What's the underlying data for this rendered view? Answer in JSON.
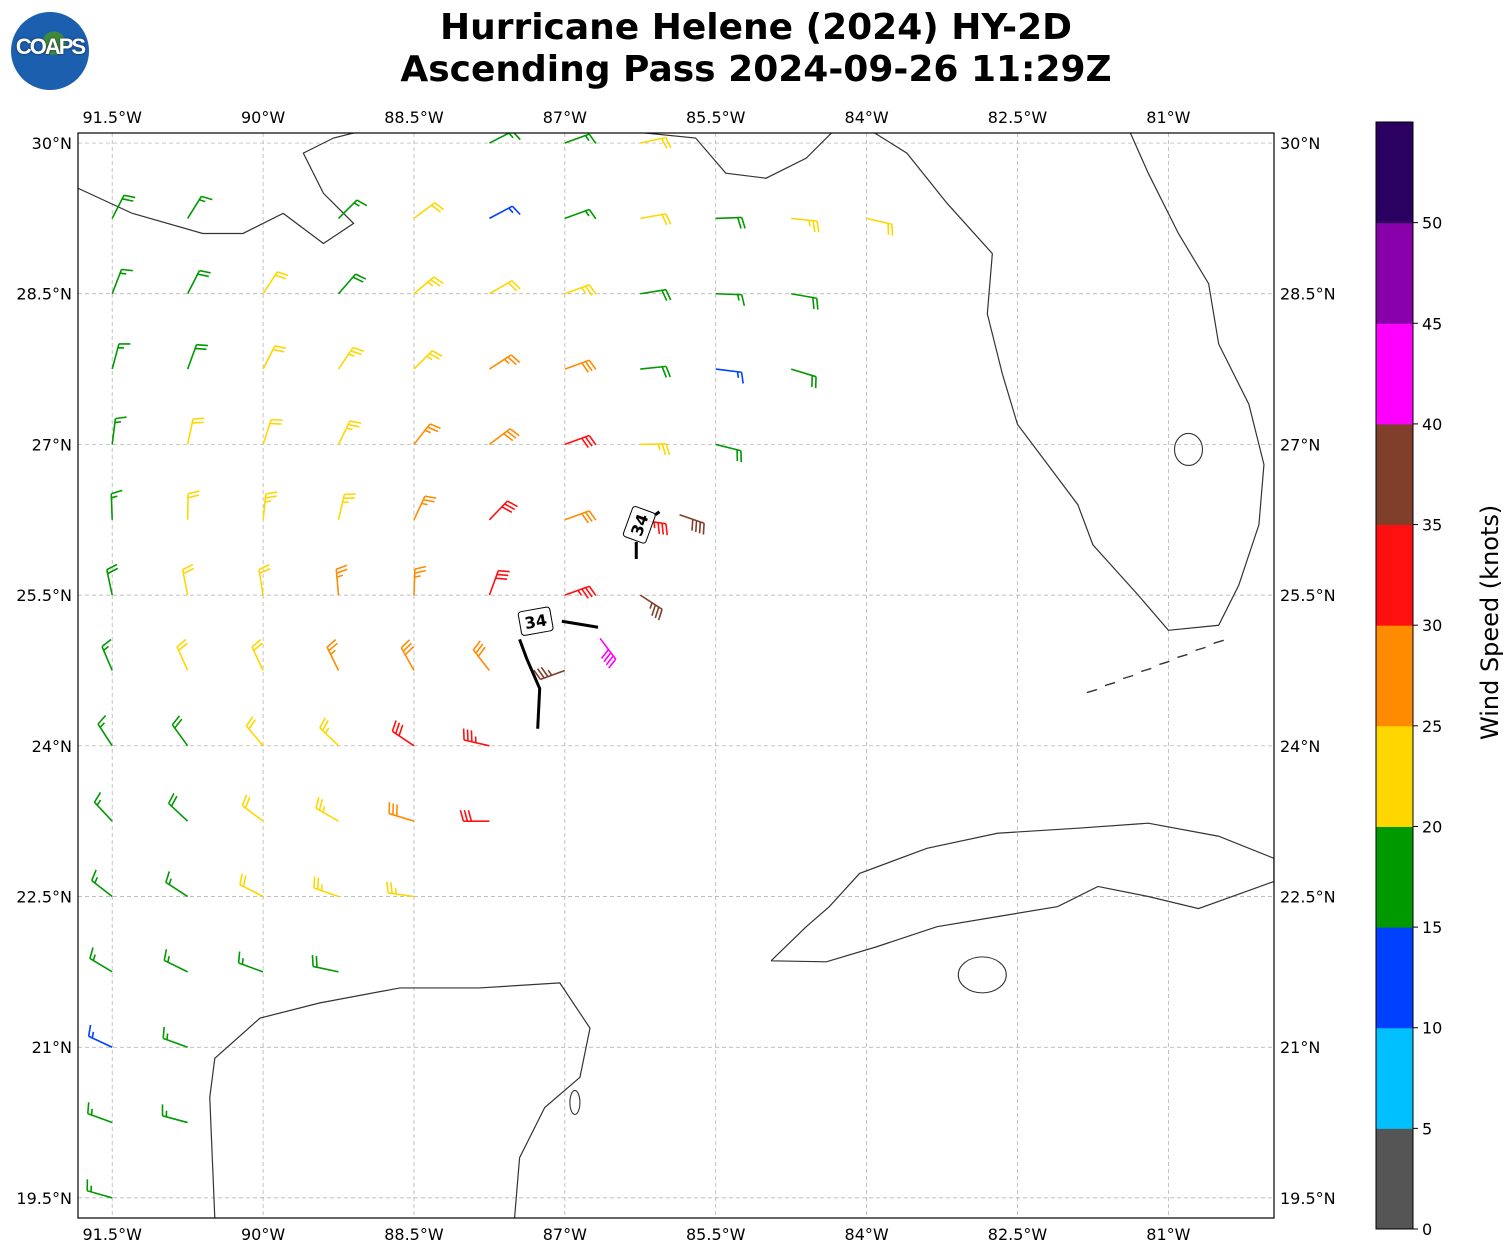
{
  "title": {
    "line1": "Hurricane Helene (2024) HY-2D",
    "line2": "Ascending Pass 2024-09-26 11:29Z"
  },
  "logo": {
    "text": "COAPS"
  },
  "map": {
    "extent": {
      "lon": [
        -91.84,
        -79.95
      ],
      "lat": [
        19.3,
        30.1
      ]
    },
    "lon_ticks": [
      {
        "v": -91.5,
        "label": "91.5°W"
      },
      {
        "v": -90,
        "label": "90°W"
      },
      {
        "v": -88.5,
        "label": "88.5°W"
      },
      {
        "v": -87,
        "label": "87°W"
      },
      {
        "v": -85.5,
        "label": "85.5°W"
      },
      {
        "v": -84,
        "label": "84°W"
      },
      {
        "v": -82.5,
        "label": "82.5°W"
      },
      {
        "v": -81,
        "label": "81°W"
      }
    ],
    "lat_ticks": [
      {
        "v": 30,
        "label": "30°N"
      },
      {
        "v": 28.5,
        "label": "28.5°N"
      },
      {
        "v": 27,
        "label": "27°N"
      },
      {
        "v": 25.5,
        "label": "25.5°N"
      },
      {
        "v": 24,
        "label": "24°N"
      },
      {
        "v": 22.5,
        "label": "22.5°N"
      },
      {
        "v": 21,
        "label": "21°N"
      },
      {
        "v": 19.5,
        "label": "19.5°N"
      }
    ],
    "gridlines": true,
    "coastline_color": "#333333"
  },
  "wind_radii": {
    "label": "34",
    "lines": [
      [
        [
          -87.45,
          25.06
        ],
        [
          -87.38,
          24.87
        ],
        [
          -87.25,
          24.57
        ],
        [
          -87.27,
          24.17
        ]
      ],
      [
        [
          -87.03,
          25.24
        ],
        [
          -86.67,
          25.18
        ]
      ],
      [
        [
          -86.29,
          26.03
        ],
        [
          -86.29,
          25.86
        ]
      ],
      [
        [
          -86.1,
          26.3
        ],
        [
          -86.06,
          26.33
        ]
      ]
    ],
    "label_positions": [
      [
        -87.29,
        25.24
      ],
      [
        -86.26,
        26.2
      ]
    ]
  },
  "barbs_columns": [
    "lon",
    "lat",
    "speed_kt",
    "direction_from_deg"
  ],
  "barbs": [
    [
      -87.75,
      30,
      17,
      63
    ],
    [
      -87,
      30,
      16,
      70
    ],
    [
      -86.25,
      30,
      22,
      78
    ],
    [
      -91.5,
      29.25,
      18,
      27
    ],
    [
      -90.75,
      29.25,
      17,
      32
    ],
    [
      -89.25,
      29.25,
      17,
      45
    ],
    [
      -88.5,
      29.25,
      22,
      53
    ],
    [
      -87.75,
      29.25,
      14,
      62
    ],
    [
      -87,
      29.25,
      17,
      70
    ],
    [
      -86.25,
      29.25,
      21,
      80
    ],
    [
      -85.5,
      29.25,
      18,
      88
    ],
    [
      -84.75,
      29.25,
      23,
      96
    ],
    [
      -84,
      29.25,
      22,
      103
    ],
    [
      -91.5,
      28.5,
      17,
      21
    ],
    [
      -90.75,
      28.5,
      18,
      27
    ],
    [
      -90,
      28.5,
      22,
      33
    ],
    [
      -89.25,
      28.5,
      18,
      41
    ],
    [
      -88.5,
      28.5,
      23,
      50
    ],
    [
      -87.75,
      28.5,
      22,
      60
    ],
    [
      -87,
      28.5,
      23,
      70
    ],
    [
      -86.25,
      28.5,
      18,
      81
    ],
    [
      -85.5,
      28.5,
      17,
      92
    ],
    [
      -84.75,
      28.5,
      19,
      100
    ],
    [
      -91.5,
      27.75,
      16,
      15
    ],
    [
      -90.75,
      27.75,
      18,
      20
    ],
    [
      -90,
      27.75,
      21,
      27
    ],
    [
      -89.25,
      27.75,
      23,
      34
    ],
    [
      -88.5,
      27.75,
      24,
      45
    ],
    [
      -87.75,
      27.75,
      27,
      57
    ],
    [
      -87,
      27.75,
      28,
      70
    ],
    [
      -86.25,
      27.75,
      19,
      84
    ],
    [
      -85.5,
      27.75,
      14,
      97
    ],
    [
      -84.75,
      27.75,
      18,
      107
    ],
    [
      -91.5,
      27,
      17,
      7
    ],
    [
      -90.75,
      27,
      21,
      12
    ],
    [
      -90,
      27,
      20,
      18
    ],
    [
      -89.25,
      27,
      23,
      26
    ],
    [
      -88.5,
      27,
      26,
      38
    ],
    [
      -87.75,
      27,
      28,
      53
    ],
    [
      -87,
      27,
      31,
      70
    ],
    [
      -86.25,
      27,
      23,
      89
    ],
    [
      -85.5,
      27,
      18,
      104
    ],
    [
      -91.5,
      26.25,
      17,
      358
    ],
    [
      -90.75,
      26.25,
      21,
      1
    ],
    [
      -90,
      26.25,
      23,
      6
    ],
    [
      -89.25,
      26.25,
      24,
      13
    ],
    [
      -88.5,
      26.25,
      26,
      25
    ],
    [
      -87.75,
      26.25,
      31,
      44
    ],
    [
      -87,
      26.25,
      28,
      70
    ],
    [
      -86.25,
      26.25,
      33,
      99
    ],
    [
      -85.86,
      26.3,
      38,
      109
    ],
    [
      -91.5,
      25.5,
      18,
      348
    ],
    [
      -90.75,
      25.5,
      21,
      349
    ],
    [
      -90,
      25.5,
      22,
      351
    ],
    [
      -89.25,
      25.5,
      25,
      355
    ],
    [
      -88.5,
      25.5,
      27,
      2
    ],
    [
      -87.75,
      25.5,
      31,
      20
    ],
    [
      -87,
      25.5,
      33,
      70
    ],
    [
      -86.25,
      25.5,
      37,
      123
    ],
    [
      -91.5,
      24.75,
      17,
      337
    ],
    [
      -90.75,
      24.75,
      21,
      336
    ],
    [
      -90,
      24.75,
      22,
      335
    ],
    [
      -89.25,
      24.75,
      26,
      334
    ],
    [
      -88.5,
      24.75,
      28,
      331
    ],
    [
      -87.75,
      24.75,
      29,
      322
    ],
    [
      -87,
      24.75,
      37,
      250
    ],
    [
      -86.65,
      25.07,
      42,
      143
    ],
    [
      -91.5,
      24,
      16,
      327
    ],
    [
      -90.75,
      24,
      19,
      324
    ],
    [
      -90,
      24,
      22,
      320
    ],
    [
      -89.25,
      24,
      24,
      314
    ],
    [
      -88.5,
      24,
      31,
      304
    ],
    [
      -87.75,
      24,
      33,
      283
    ],
    [
      -91.5,
      23.25,
      16,
      317
    ],
    [
      -90.75,
      23.25,
      19,
      313
    ],
    [
      -90,
      23.25,
      22,
      307
    ],
    [
      -89.25,
      23.25,
      24,
      300
    ],
    [
      -88.5,
      23.25,
      28,
      287
    ],
    [
      -87.75,
      23.25,
      32,
      270
    ],
    [
      -91.5,
      22.5,
      16,
      308
    ],
    [
      -90.75,
      22.5,
      17,
      303
    ],
    [
      -90,
      22.5,
      21,
      297
    ],
    [
      -89.25,
      22.5,
      23,
      289
    ],
    [
      -88.5,
      22.5,
      24,
      278
    ],
    [
      -91.5,
      21.75,
      16,
      301
    ],
    [
      -90.75,
      21.75,
      17,
      296
    ],
    [
      -90,
      21.75,
      17,
      290
    ],
    [
      -89.25,
      21.75,
      18,
      282
    ],
    [
      -91.5,
      21,
      13,
      295
    ],
    [
      -90.75,
      21,
      16,
      290
    ],
    [
      -91.5,
      20.25,
      16,
      290
    ],
    [
      -90.75,
      20.25,
      16,
      285
    ],
    [
      -91.5,
      19.5,
      15,
      286
    ]
  ],
  "colorbar": {
    "label": "Wind Speed (knots)",
    "bounds": [
      0,
      5,
      10,
      15,
      20,
      25,
      30,
      35,
      40,
      45,
      50,
      55
    ],
    "tick_labels": [
      "0",
      "5",
      "10",
      "15",
      "20",
      "25",
      "30",
      "35",
      "40",
      "45",
      "50"
    ],
    "colors": [
      "#555555",
      "#00bfff",
      "#0040ff",
      "#009900",
      "#ffd700",
      "#ff8c00",
      "#ff1010",
      "#7f3f2a",
      "#ff00ff",
      "#8800aa",
      "#2a0060"
    ]
  }
}
